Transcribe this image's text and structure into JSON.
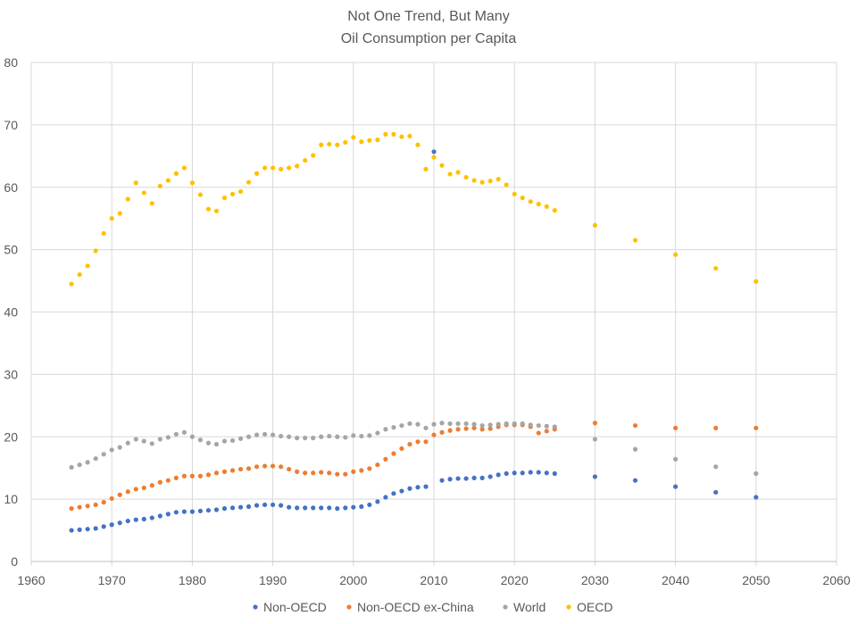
{
  "chart_data": {
    "type": "scatter",
    "title": "Not One Trend, But Many",
    "subtitle": "Oil Consumption per Capita",
    "xlabel": "",
    "ylabel": "",
    "xlim": [
      1960,
      2060
    ],
    "ylim": [
      0,
      80
    ],
    "x_ticks": [
      1960,
      1970,
      1980,
      1990,
      2000,
      2010,
      2020,
      2030,
      2040,
      2050,
      2060
    ],
    "y_ticks": [
      0,
      10,
      20,
      30,
      40,
      50,
      60,
      70,
      80
    ],
    "grid": true,
    "legend_position": "bottom",
    "series": [
      {
        "name": "Non-OECD",
        "color": "#4472c4",
        "x": [
          1965,
          1966,
          1967,
          1968,
          1969,
          1970,
          1971,
          1972,
          1973,
          1974,
          1975,
          1976,
          1977,
          1978,
          1979,
          1980,
          1981,
          1982,
          1983,
          1984,
          1985,
          1986,
          1987,
          1988,
          1989,
          1990,
          1991,
          1992,
          1993,
          1994,
          1995,
          1996,
          1997,
          1998,
          1999,
          2000,
          2001,
          2002,
          2003,
          2004,
          2005,
          2006,
          2007,
          2008,
          2009,
          2010,
          2011,
          2012,
          2013,
          2014,
          2015,
          2016,
          2017,
          2018,
          2019,
          2020,
          2021,
          2022,
          2023,
          2024,
          2025,
          2030,
          2035,
          2040,
          2045,
          2050
        ],
        "y": [
          5.0,
          5.1,
          5.2,
          5.3,
          5.6,
          5.9,
          6.2,
          6.5,
          6.7,
          6.8,
          7.0,
          7.3,
          7.6,
          7.9,
          8.0,
          8.0,
          8.1,
          8.2,
          8.3,
          8.5,
          8.6,
          8.7,
          8.8,
          9.0,
          9.1,
          9.1,
          9.0,
          8.7,
          8.6,
          8.6,
          8.6,
          8.6,
          8.6,
          8.5,
          8.6,
          8.7,
          8.8,
          9.1,
          9.6,
          10.3,
          10.9,
          11.3,
          11.7,
          11.9,
          12.0,
          65.7,
          13.0,
          13.2,
          13.3,
          13.3,
          13.4,
          13.4,
          13.6,
          13.9,
          14.1,
          14.2,
          14.2,
          14.3,
          14.3,
          14.2,
          14.1,
          13.6,
          13.0,
          12.0,
          11.1,
          10.3
        ]
      },
      {
        "name": "Non-OECD ex-China",
        "color": "#ed7d31",
        "x": [
          1965,
          1966,
          1967,
          1968,
          1969,
          1970,
          1971,
          1972,
          1973,
          1974,
          1975,
          1976,
          1977,
          1978,
          1979,
          1980,
          1981,
          1982,
          1983,
          1984,
          1985,
          1986,
          1987,
          1988,
          1989,
          1990,
          1991,
          1992,
          1993,
          1994,
          1995,
          1996,
          1997,
          1998,
          1999,
          2000,
          2001,
          2002,
          2003,
          2004,
          2005,
          2006,
          2007,
          2008,
          2009,
          2010,
          2011,
          2012,
          2013,
          2014,
          2015,
          2016,
          2017,
          2018,
          2019,
          2020,
          2021,
          2022,
          2023,
          2024,
          2025,
          2030,
          2035,
          2040,
          2045,
          2050
        ],
        "y": [
          8.5,
          8.7,
          8.9,
          9.1,
          9.5,
          10.1,
          10.7,
          11.2,
          11.6,
          11.8,
          12.2,
          12.7,
          13.0,
          13.4,
          13.7,
          13.7,
          13.7,
          13.9,
          14.2,
          14.4,
          14.6,
          14.8,
          14.9,
          15.2,
          15.3,
          15.3,
          15.2,
          14.8,
          14.4,
          14.2,
          14.2,
          14.3,
          14.2,
          14.0,
          14.0,
          14.4,
          14.6,
          14.9,
          15.5,
          16.4,
          17.3,
          18.1,
          18.8,
          19.2,
          19.2,
          20.3,
          20.7,
          21.0,
          21.2,
          21.3,
          21.4,
          21.2,
          21.3,
          21.6,
          21.9,
          21.9,
          21.9,
          21.6,
          20.6,
          20.9,
          21.2,
          22.2,
          21.8,
          21.4,
          21.4,
          21.4
        ]
      },
      {
        "name": "World",
        "color": "#a5a5a5",
        "x": [
          1965,
          1966,
          1967,
          1968,
          1969,
          1970,
          1971,
          1972,
          1973,
          1974,
          1975,
          1976,
          1977,
          1978,
          1979,
          1980,
          1981,
          1982,
          1983,
          1984,
          1985,
          1986,
          1987,
          1988,
          1989,
          1990,
          1991,
          1992,
          1993,
          1994,
          1995,
          1996,
          1997,
          1998,
          1999,
          2000,
          2001,
          2002,
          2003,
          2004,
          2005,
          2006,
          2007,
          2008,
          2009,
          2010,
          2011,
          2012,
          2013,
          2014,
          2015,
          2016,
          2017,
          2018,
          2019,
          2020,
          2021,
          2022,
          2023,
          2024,
          2025,
          2030,
          2035,
          2040,
          2045,
          2050
        ],
        "y": [
          15.1,
          15.5,
          15.9,
          16.5,
          17.2,
          17.9,
          18.3,
          19.0,
          19.6,
          19.3,
          18.9,
          19.6,
          19.9,
          20.4,
          20.7,
          20.0,
          19.5,
          19.0,
          18.8,
          19.3,
          19.4,
          19.7,
          20.0,
          20.3,
          20.4,
          20.3,
          20.1,
          20.0,
          19.8,
          19.8,
          19.8,
          20.0,
          20.1,
          20.0,
          19.9,
          20.2,
          20.1,
          20.2,
          20.6,
          21.2,
          21.5,
          21.8,
          22.1,
          22.0,
          21.4,
          22.0,
          22.2,
          22.1,
          22.1,
          22.1,
          22.0,
          21.8,
          21.9,
          22.0,
          22.1,
          22.1,
          22.1,
          21.9,
          21.8,
          21.7,
          21.6,
          19.6,
          18.0,
          16.4,
          15.2,
          14.1
        ]
      },
      {
        "name": "OECD",
        "color": "#ffc000",
        "x": [
          1965,
          1966,
          1967,
          1968,
          1969,
          1970,
          1971,
          1972,
          1973,
          1974,
          1975,
          1976,
          1977,
          1978,
          1979,
          1980,
          1981,
          1982,
          1983,
          1984,
          1985,
          1986,
          1987,
          1988,
          1989,
          1990,
          1991,
          1992,
          1993,
          1994,
          1995,
          1996,
          1997,
          1998,
          1999,
          2000,
          2001,
          2002,
          2003,
          2004,
          2005,
          2006,
          2007,
          2008,
          2009,
          2010,
          2011,
          2012,
          2013,
          2014,
          2015,
          2016,
          2017,
          2018,
          2019,
          2020,
          2021,
          2022,
          2023,
          2024,
          2025,
          2030,
          2035,
          2040,
          2045,
          2050
        ],
        "y": [
          44.5,
          46.0,
          47.4,
          49.8,
          52.6,
          55.0,
          55.8,
          58.1,
          60.7,
          59.1,
          57.4,
          60.2,
          61.1,
          62.2,
          63.1,
          60.7,
          58.8,
          56.5,
          56.2,
          58.3,
          58.9,
          59.3,
          60.8,
          62.2,
          63.1,
          63.1,
          62.9,
          63.1,
          63.4,
          64.3,
          65.1,
          66.8,
          66.9,
          66.8,
          67.2,
          68.0,
          67.3,
          67.5,
          67.6,
          68.5,
          68.5,
          68.1,
          68.2,
          66.8,
          62.9,
          64.8,
          63.5,
          62.1,
          62.4,
          61.6,
          61.1,
          60.8,
          61.0,
          61.3,
          60.4,
          58.9,
          58.3,
          57.7,
          57.3,
          56.9,
          56.3,
          53.9,
          51.5,
          49.2,
          47.0,
          44.9
        ]
      }
    ]
  }
}
